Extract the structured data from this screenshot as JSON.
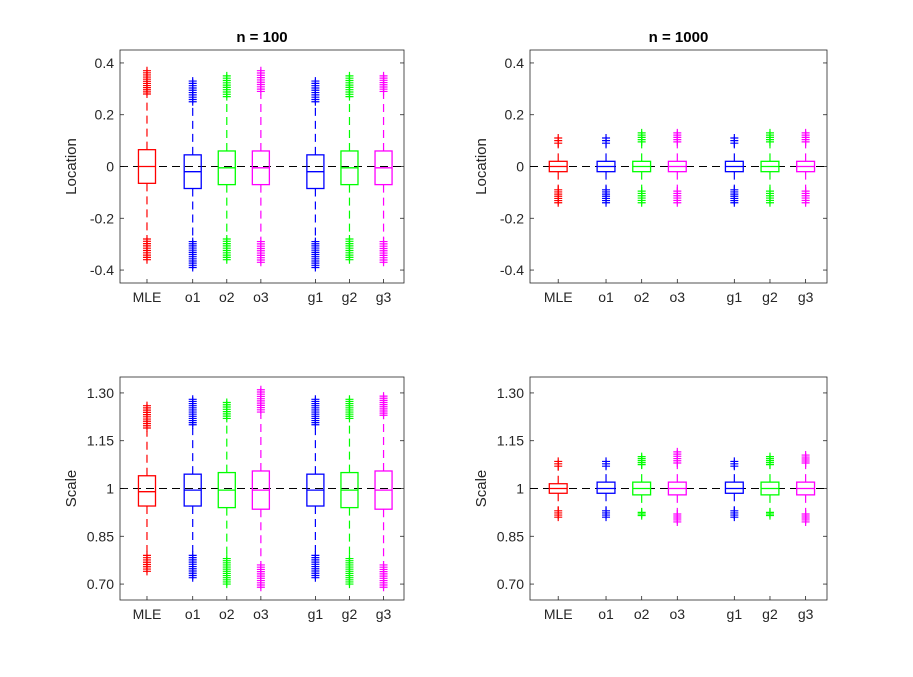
{
  "chart_data": [
    {
      "type": "box",
      "title": "n = 100",
      "ylabel": "Location",
      "xlabel": "",
      "ylim": [
        -0.45,
        0.45
      ],
      "yticks": [
        -0.4,
        -0.2,
        0,
        0.2,
        0.4
      ],
      "ytick_labels": [
        "-0.4",
        "-0.2",
        "0",
        "0.2",
        "0.4"
      ],
      "reference_line": 0,
      "categories": [
        "MLE",
        "o1",
        "o2",
        "o3",
        "g1",
        "g2",
        "g3"
      ],
      "colors": [
        "#ff0000",
        "#0000ff",
        "#00ff00",
        "#ff00ff",
        "#0000ff",
        "#00ff00",
        "#ff00ff"
      ],
      "boxes": [
        {
          "q1": -0.065,
          "median": 0.0,
          "q3": 0.065,
          "whisker_low": -0.26,
          "whisker_high": 0.26,
          "outliers_low": [
            -0.36,
            -0.28
          ],
          "outliers_high": [
            0.28,
            0.37
          ]
        },
        {
          "q1": -0.085,
          "median": -0.02,
          "q3": 0.045,
          "whisker_low": -0.28,
          "whisker_high": 0.24,
          "outliers_low": [
            -0.39,
            -0.29
          ],
          "outliers_high": [
            0.25,
            0.33
          ]
        },
        {
          "q1": -0.07,
          "median": -0.005,
          "q3": 0.06,
          "whisker_low": -0.27,
          "whisker_high": 0.26,
          "outliers_low": [
            -0.36,
            -0.28
          ],
          "outliers_high": [
            0.27,
            0.35
          ]
        },
        {
          "q1": -0.07,
          "median": -0.005,
          "q3": 0.06,
          "whisker_low": -0.28,
          "whisker_high": 0.28,
          "outliers_low": [
            -0.37,
            -0.29
          ],
          "outliers_high": [
            0.29,
            0.37
          ]
        },
        {
          "q1": -0.085,
          "median": -0.02,
          "q3": 0.045,
          "whisker_low": -0.28,
          "whisker_high": 0.24,
          "outliers_low": [
            -0.39,
            -0.29
          ],
          "outliers_high": [
            0.25,
            0.33
          ]
        },
        {
          "q1": -0.07,
          "median": -0.005,
          "q3": 0.06,
          "whisker_low": -0.27,
          "whisker_high": 0.26,
          "outliers_low": [
            -0.36,
            -0.28
          ],
          "outliers_high": [
            0.27,
            0.35
          ]
        },
        {
          "q1": -0.07,
          "median": -0.005,
          "q3": 0.06,
          "whisker_low": -0.28,
          "whisker_high": 0.28,
          "outliers_low": [
            -0.37,
            -0.29
          ],
          "outliers_high": [
            0.29,
            0.35
          ]
        }
      ]
    },
    {
      "type": "box",
      "title": "n = 1000",
      "ylabel": "Location",
      "xlabel": "",
      "ylim": [
        -0.45,
        0.45
      ],
      "yticks": [
        -0.4,
        -0.2,
        0,
        0.2,
        0.4
      ],
      "ytick_labels": [
        "-0.4",
        "-0.2",
        "0",
        "0.2",
        "0.4"
      ],
      "reference_line": 0,
      "categories": [
        "MLE",
        "o1",
        "o2",
        "o3",
        "g1",
        "g2",
        "g3"
      ],
      "colors": [
        "#ff0000",
        "#0000ff",
        "#00ff00",
        "#ff00ff",
        "#0000ff",
        "#00ff00",
        "#ff00ff"
      ],
      "boxes": [
        {
          "q1": -0.02,
          "median": 0.0,
          "q3": 0.02,
          "whisker_low": -0.085,
          "whisker_high": 0.085,
          "outliers_low": [
            -0.14,
            -0.09
          ],
          "outliers_high": [
            0.09,
            0.11
          ]
        },
        {
          "q1": -0.02,
          "median": 0.0,
          "q3": 0.02,
          "whisker_low": -0.085,
          "whisker_high": 0.085,
          "outliers_low": [
            -0.14,
            -0.09
          ],
          "outliers_high": [
            0.09,
            0.11
          ]
        },
        {
          "q1": -0.02,
          "median": 0.0,
          "q3": 0.02,
          "whisker_low": -0.09,
          "whisker_high": 0.09,
          "outliers_low": [
            -0.14,
            -0.095
          ],
          "outliers_high": [
            0.095,
            0.13
          ]
        },
        {
          "q1": -0.02,
          "median": 0.0,
          "q3": 0.02,
          "whisker_low": -0.09,
          "whisker_high": 0.09,
          "outliers_low": [
            -0.14,
            -0.095
          ],
          "outliers_high": [
            0.095,
            0.13
          ]
        },
        {
          "q1": -0.02,
          "median": 0.0,
          "q3": 0.02,
          "whisker_low": -0.085,
          "whisker_high": 0.085,
          "outliers_low": [
            -0.14,
            -0.09
          ],
          "outliers_high": [
            0.09,
            0.11
          ]
        },
        {
          "q1": -0.02,
          "median": 0.0,
          "q3": 0.02,
          "whisker_low": -0.09,
          "whisker_high": 0.09,
          "outliers_low": [
            -0.14,
            -0.095
          ],
          "outliers_high": [
            0.095,
            0.13
          ]
        },
        {
          "q1": -0.02,
          "median": 0.0,
          "q3": 0.02,
          "whisker_low": -0.09,
          "whisker_high": 0.09,
          "outliers_low": [
            -0.14,
            -0.095
          ],
          "outliers_high": [
            0.095,
            0.13
          ]
        }
      ]
    },
    {
      "type": "box",
      "title": "",
      "ylabel": "Scale",
      "xlabel": "",
      "ylim": [
        0.65,
        1.35
      ],
      "yticks": [
        0.7,
        0.85,
        1.0,
        1.15,
        1.3
      ],
      "ytick_labels": [
        "0.70",
        "0.85",
        "1",
        "1.15",
        "1.30"
      ],
      "reference_line": 1,
      "categories": [
        "MLE",
        "o1",
        "o2",
        "o3",
        "g1",
        "g2",
        "g3"
      ],
      "colors": [
        "#ff0000",
        "#0000ff",
        "#00ff00",
        "#ff00ff",
        "#0000ff",
        "#00ff00",
        "#ff00ff"
      ],
      "boxes": [
        {
          "q1": 0.945,
          "median": 0.99,
          "q3": 1.04,
          "whisker_low": 0.8,
          "whisker_high": 1.18,
          "outliers_low": [
            0.74,
            0.79
          ],
          "outliers_high": [
            1.19,
            1.26
          ]
        },
        {
          "q1": 0.945,
          "median": 0.995,
          "q3": 1.045,
          "whisker_low": 0.8,
          "whisker_high": 1.19,
          "outliers_low": [
            0.72,
            0.79
          ],
          "outliers_high": [
            1.2,
            1.28
          ]
        },
        {
          "q1": 0.94,
          "median": 0.995,
          "q3": 1.05,
          "whisker_low": 0.79,
          "whisker_high": 1.21,
          "outliers_low": [
            0.7,
            0.78
          ],
          "outliers_high": [
            1.22,
            1.27
          ]
        },
        {
          "q1": 0.935,
          "median": 0.995,
          "q3": 1.055,
          "whisker_low": 0.77,
          "whisker_high": 1.23,
          "outliers_low": [
            0.69,
            0.76
          ],
          "outliers_high": [
            1.24,
            1.31
          ]
        },
        {
          "q1": 0.945,
          "median": 0.995,
          "q3": 1.045,
          "whisker_low": 0.8,
          "whisker_high": 1.19,
          "outliers_low": [
            0.72,
            0.79
          ],
          "outliers_high": [
            1.2,
            1.28
          ]
        },
        {
          "q1": 0.94,
          "median": 0.995,
          "q3": 1.05,
          "whisker_low": 0.79,
          "whisker_high": 1.21,
          "outliers_low": [
            0.7,
            0.78
          ],
          "outliers_high": [
            1.22,
            1.28
          ]
        },
        {
          "q1": 0.935,
          "median": 0.995,
          "q3": 1.055,
          "whisker_low": 0.77,
          "whisker_high": 1.22,
          "outliers_low": [
            0.69,
            0.76
          ],
          "outliers_high": [
            1.23,
            1.29
          ]
        }
      ]
    },
    {
      "type": "box",
      "title": "",
      "ylabel": "Scale",
      "xlabel": "",
      "ylim": [
        0.65,
        1.35
      ],
      "yticks": [
        0.7,
        0.85,
        1.0,
        1.15,
        1.3
      ],
      "ytick_labels": [
        "0.70",
        "0.85",
        "1",
        "1.15",
        "1.30"
      ],
      "reference_line": 1,
      "categories": [
        "MLE",
        "o1",
        "o2",
        "o3",
        "g1",
        "g2",
        "g3"
      ],
      "colors": [
        "#ff0000",
        "#0000ff",
        "#00ff00",
        "#ff00ff",
        "#0000ff",
        "#00ff00",
        "#ff00ff"
      ],
      "boxes": [
        {
          "q1": 0.985,
          "median": 1.0,
          "q3": 1.015,
          "whisker_low": 0.935,
          "whisker_high": 1.065,
          "outliers_low": [
            0.91,
            0.93
          ],
          "outliers_high": [
            1.07,
            1.085
          ]
        },
        {
          "q1": 0.985,
          "median": 1.0,
          "q3": 1.02,
          "whisker_low": 0.935,
          "whisker_high": 1.065,
          "outliers_low": [
            0.91,
            0.93
          ],
          "outliers_high": [
            1.07,
            1.085
          ]
        },
        {
          "q1": 0.98,
          "median": 1.0,
          "q3": 1.02,
          "whisker_low": 0.93,
          "whisker_high": 1.07,
          "outliers_low": [
            0.915,
            0.925
          ],
          "outliers_high": [
            1.075,
            1.1
          ]
        },
        {
          "q1": 0.98,
          "median": 1.0,
          "q3": 1.02,
          "whisker_low": 0.925,
          "whisker_high": 1.075,
          "outliers_low": [
            0.895,
            0.92
          ],
          "outliers_high": [
            1.08,
            1.115
          ]
        },
        {
          "q1": 0.985,
          "median": 1.0,
          "q3": 1.02,
          "whisker_low": 0.935,
          "whisker_high": 1.065,
          "outliers_low": [
            0.91,
            0.93
          ],
          "outliers_high": [
            1.07,
            1.085
          ]
        },
        {
          "q1": 0.98,
          "median": 1.0,
          "q3": 1.02,
          "whisker_low": 0.93,
          "whisker_high": 1.07,
          "outliers_low": [
            0.915,
            0.925
          ],
          "outliers_high": [
            1.075,
            1.1
          ]
        },
        {
          "q1": 0.98,
          "median": 1.0,
          "q3": 1.02,
          "whisker_low": 0.925,
          "whisker_high": 1.075,
          "outliers_low": [
            0.895,
            0.92
          ],
          "outliers_high": [
            1.08,
            1.105
          ]
        }
      ]
    }
  ]
}
